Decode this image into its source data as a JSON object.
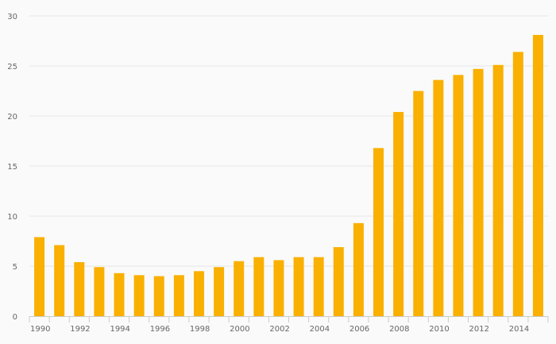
{
  "chart_data": {
    "type": "bar",
    "categories": [
      "1990",
      "1991",
      "1992",
      "1993",
      "1994",
      "1995",
      "1996",
      "1997",
      "1998",
      "1999",
      "2000",
      "2001",
      "2002",
      "2003",
      "2004",
      "2005",
      "2006",
      "2007",
      "2008",
      "2009",
      "2010",
      "2011",
      "2012",
      "2013",
      "2014",
      "2015"
    ],
    "values": [
      7.9,
      7.1,
      5.4,
      4.9,
      4.3,
      4.1,
      4.0,
      4.1,
      4.5,
      4.9,
      5.5,
      5.9,
      5.6,
      5.9,
      5.9,
      6.9,
      9.3,
      16.8,
      20.4,
      22.5,
      23.6,
      24.1,
      24.7,
      25.1,
      26.4,
      28.1
    ],
    "x_tick_labels": [
      "1990",
      "1992",
      "1994",
      "1996",
      "1998",
      "2000",
      "2002",
      "2004",
      "2006",
      "2008",
      "2010",
      "2012",
      "2014"
    ],
    "y_ticks": [
      0,
      5,
      10,
      15,
      20,
      25,
      30
    ],
    "ylim": [
      0,
      30
    ],
    "bar_color": "#f9b000",
    "grid": true,
    "title": "",
    "xlabel": "",
    "ylabel": ""
  }
}
